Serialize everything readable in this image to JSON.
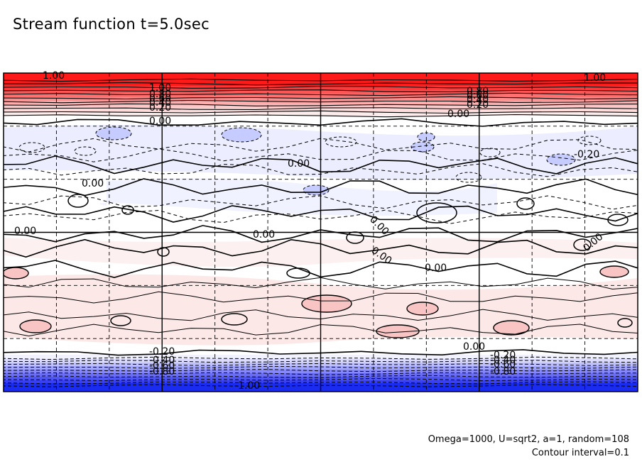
{
  "title": "Stream function t=5.0sec",
  "footer": {
    "params": "Omega=1000, U=sqrt2, a=1, random=108",
    "interval": "Contour interval=0.1"
  },
  "colors": {
    "positive_max": "#ff1a1a",
    "negative_max": "#1a2cf0",
    "light_blue": "#e8ebff",
    "light_pink": "#fde6e6",
    "contour": "#000000"
  },
  "chart_data": {
    "type": "heatmap",
    "title": "Stream function t=5.0sec",
    "value_range": [
      -1.0,
      1.0
    ],
    "contour_interval": 0.1,
    "grid": true,
    "contour_labels": [
      "1.00",
      "1.00",
      "1.00",
      "0.80",
      "0.60",
      "0.40",
      "0.20",
      "0.80",
      "0.60",
      "0.40",
      "0.20",
      "0.00",
      "0.00",
      "0.00",
      "0.00",
      "-0.20",
      "0.00",
      "0.00",
      "0.00",
      "0.00",
      "0.00",
      "0.00",
      "0.00",
      "-0.20",
      "-0.40",
      "-0.60",
      "-0.80",
      "-0.20",
      "-0.40",
      "-0.60",
      "-0.80",
      "-1.00"
    ]
  }
}
